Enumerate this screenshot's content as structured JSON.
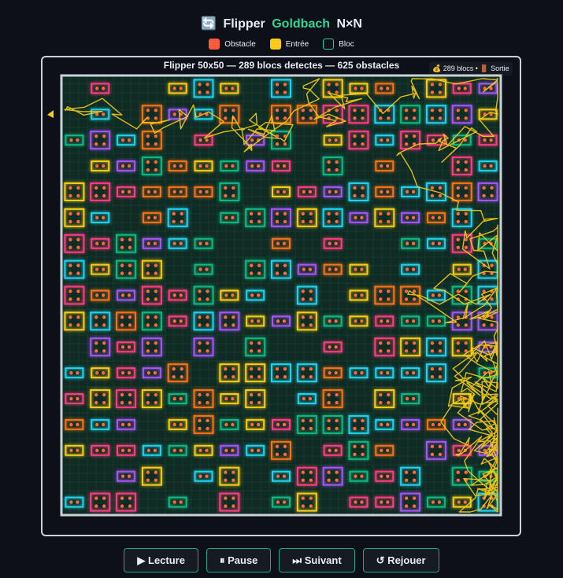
{
  "title": {
    "icon": "🔄",
    "prefix": "Flipper",
    "highlight": "Goldbach",
    "suffix": "N×N"
  },
  "legend": [
    {
      "label": "Obstacle",
      "color": "#ff5a3c"
    },
    {
      "label": "Entrée",
      "color": "#facc15"
    },
    {
      "label": "Bloc",
      "color": "#1fd1a5"
    }
  ],
  "board": {
    "header": "Flipper 50x50 — 289 blocs detectes — 625 obstacles",
    "badge": "💰 289 blocs • 🚪 Sortie"
  },
  "buttons": [
    "▶ Lecture",
    "⏸ Pause",
    "⏭ Suivant",
    "↺ Rejouer"
  ]
}
